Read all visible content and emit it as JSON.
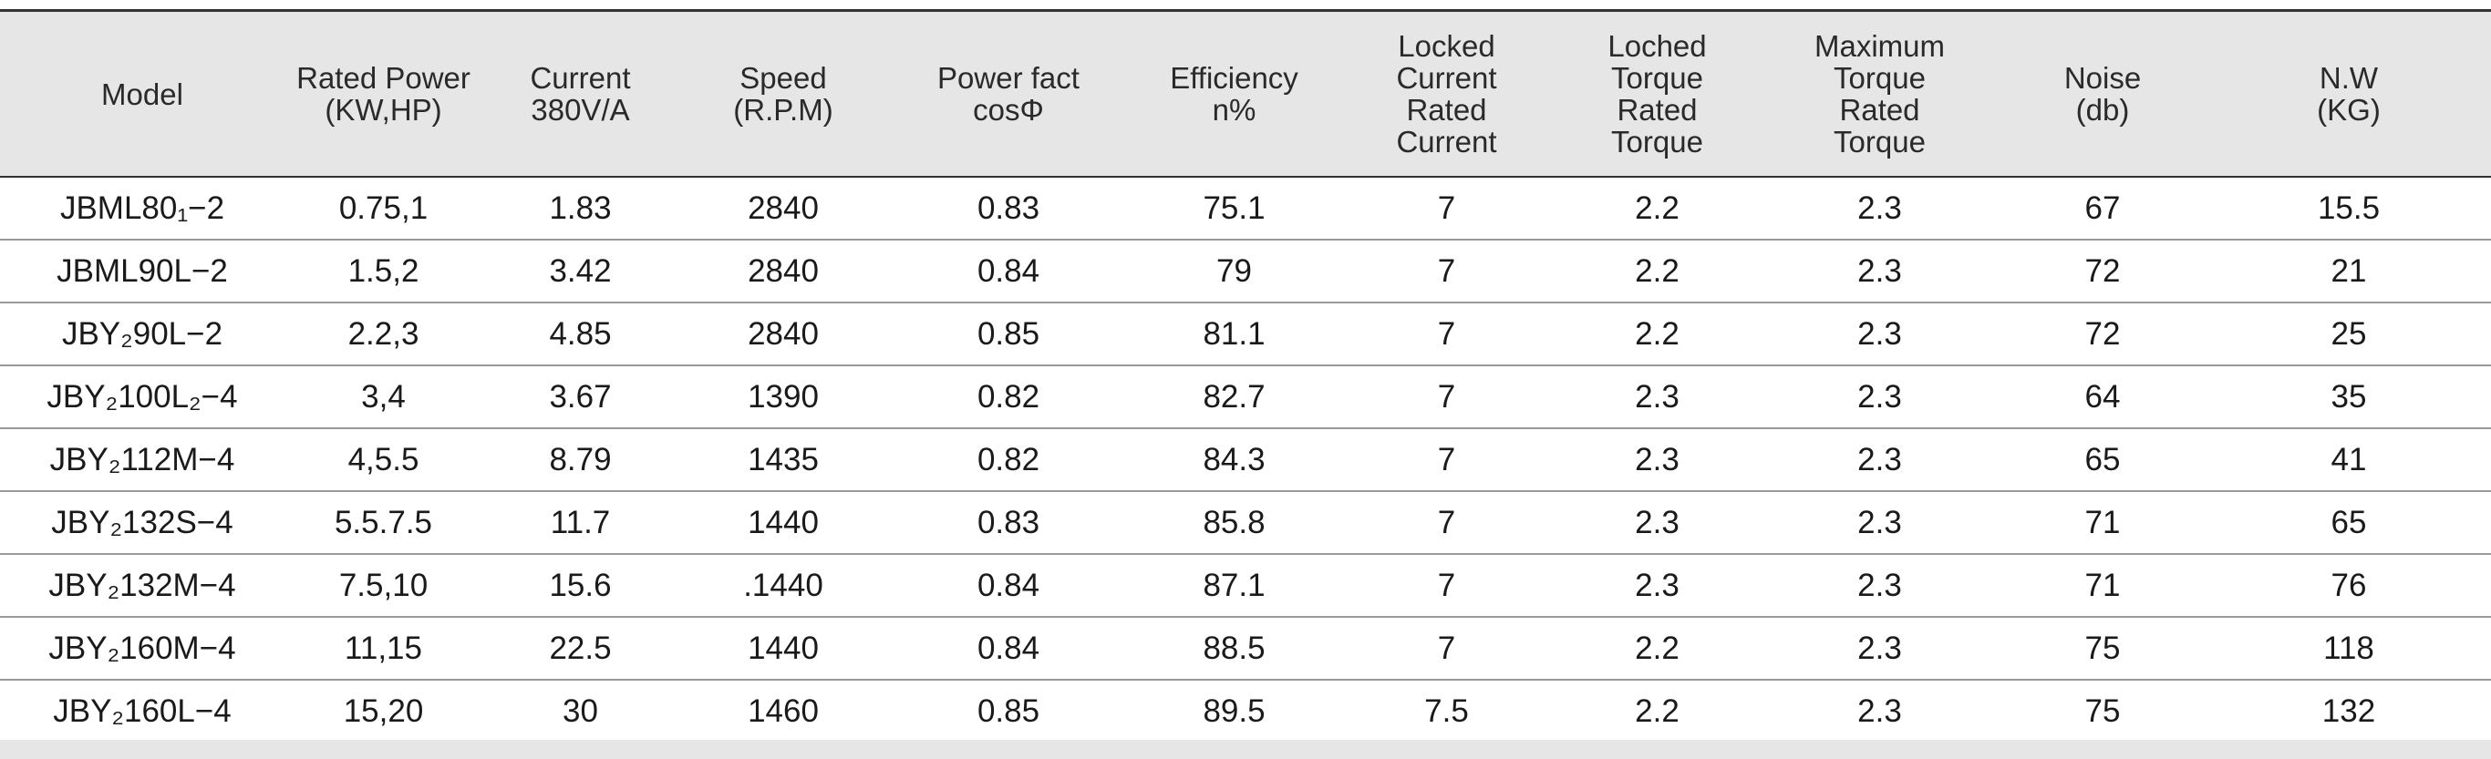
{
  "columns": [
    [
      "Model"
    ],
    [
      "Rated Power",
      "(KW,HP)"
    ],
    [
      "Current",
      "380V/A"
    ],
    [
      "Speed",
      "(R.P.M)"
    ],
    [
      "Power fact",
      "cosΦ"
    ],
    [
      "Efficiency",
      "n%"
    ],
    [
      "Locked",
      "Current",
      "Rated",
      "Current"
    ],
    [
      "Loched",
      "Torque",
      "Rated",
      "Torque"
    ],
    [
      "Maximum",
      "Torque",
      "Rated",
      "Torque"
    ],
    [
      "Noise",
      "(db)"
    ],
    [
      "N.W",
      "(KG)"
    ]
  ],
  "rows": [
    [
      "JBML80₁−2",
      "0.75,1",
      "1.83",
      "2840",
      "0.83",
      "75.1",
      "7",
      "2.2",
      "2.3",
      "67",
      "15.5"
    ],
    [
      "JBML90L−2",
      "1.5,2",
      "3.42",
      "2840",
      "0.84",
      "79",
      "7",
      "2.2",
      "2.3",
      "72",
      "21"
    ],
    [
      "JBY₂90L−2",
      "2.2,3",
      "4.85",
      "2840",
      "0.85",
      "81.1",
      "7",
      "2.2",
      "2.3",
      "72",
      "25"
    ],
    [
      "JBY₂100L₂−4",
      "3,4",
      "3.67",
      "1390",
      "0.82",
      "82.7",
      "7",
      "2.3",
      "2.3",
      "64",
      "35"
    ],
    [
      "JBY₂112M−4",
      "4,5.5",
      "8.79",
      "1435",
      "0.82",
      "84.3",
      "7",
      "2.3",
      "2.3",
      "65",
      "41"
    ],
    [
      "JBY₂132S−4",
      "5.5.7.5",
      "11.7",
      "1440",
      "0.83",
      "85.8",
      "7",
      "2.3",
      "2.3",
      "71",
      "65"
    ],
    [
      "JBY₂132M−4",
      "7.5,10",
      "15.6",
      ".1440",
      "0.84",
      "87.1",
      "7",
      "2.3",
      "2.3",
      "71",
      "76"
    ],
    [
      "JBY₂160M−4",
      "11,15",
      "22.5",
      "1440",
      "0.84",
      "88.5",
      "7",
      "2.2",
      "2.3",
      "75",
      "118"
    ],
    [
      "JBY₂160L−4",
      "15,20",
      "30",
      "1460",
      "0.85",
      "89.5",
      "7.5",
      "2.2",
      "2.3",
      "75",
      "132"
    ]
  ]
}
